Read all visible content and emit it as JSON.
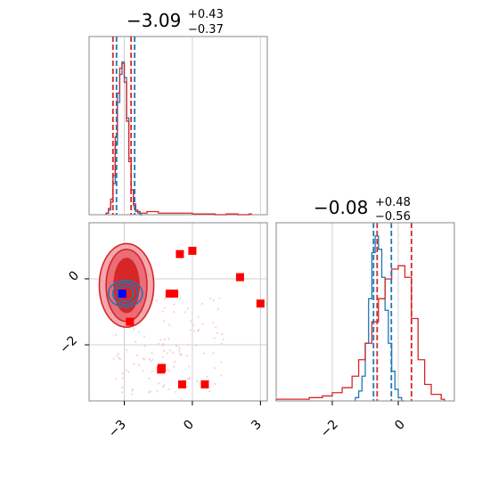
{
  "chart_data": [
    {
      "type": "histogram",
      "panel": "marginal-param-1",
      "title": {
        "median": "−3.09",
        "plus": "+0.43",
        "minus": "−0.37"
      },
      "xlim": [
        -4.55,
        3.3
      ],
      "grid": true,
      "series": [
        {
          "name": "",
          "color": "#1f77b4",
          "bins": [
            -3.8,
            -3.7,
            -3.6,
            -3.5,
            -3.4,
            -3.3,
            -3.2,
            -3.1,
            -3.0,
            -2.9,
            -2.8,
            -2.7,
            -2.6,
            -2.5,
            -2.4,
            -2.3
          ],
          "counts": [
            0.01,
            0.03,
            0.08,
            0.2,
            0.45,
            0.72,
            0.9,
            0.98,
            0.88,
            0.62,
            0.36,
            0.16,
            0.06,
            0.02,
            0.01,
            0.0
          ],
          "quantiles": [
            -3.46,
            -2.66
          ]
        },
        {
          "name": "",
          "color": "#d62728",
          "bins": [
            -3.8,
            -3.7,
            -3.6,
            -3.5,
            -3.4,
            -3.3,
            -3.2,
            -3.1,
            -3.0,
            -2.9,
            -2.8,
            -2.7,
            -2.6,
            -2.5,
            -2.4,
            -2.3,
            -2.0,
            -1.5,
            -1.0,
            -0.5,
            0.0,
            0.5,
            1.0,
            1.5,
            2.0,
            2.5
          ],
          "counts": [
            0.01,
            0.04,
            0.1,
            0.25,
            0.5,
            0.78,
            0.94,
            0.97,
            0.85,
            0.6,
            0.34,
            0.16,
            0.07,
            0.03,
            0.02,
            0.01,
            0.02,
            0.01,
            0.01,
            0.01,
            0.005,
            0.005,
            0.0,
            0.005,
            0.0,
            0.005
          ],
          "quantiles": [
            -3.46,
            -2.66
          ]
        }
      ]
    },
    {
      "type": "histogram",
      "panel": "marginal-param-2",
      "title": {
        "median": "−0.08",
        "plus": "+0.48",
        "minus": "−0.56"
      },
      "xlim": [
        -3.7,
        1.7
      ],
      "xticks": [
        "−2",
        "0"
      ],
      "grid": true,
      "series": [
        {
          "name": "",
          "color": "#1f77b4",
          "bins": [
            -1.3,
            -1.2,
            -1.1,
            -1.0,
            -0.9,
            -0.8,
            -0.7,
            -0.6,
            -0.5,
            -0.4,
            -0.3,
            -0.2,
            -0.1,
            0.0,
            0.1
          ],
          "counts": [
            0.02,
            0.06,
            0.15,
            0.35,
            0.62,
            0.9,
            1.0,
            0.92,
            0.75,
            0.55,
            0.35,
            0.18,
            0.07,
            0.02,
            0.0
          ],
          "quantiles": [
            -0.75,
            -0.21
          ]
        },
        {
          "name": "",
          "color": "#d62728",
          "bins": [
            -3.7,
            -3.2,
            -2.7,
            -2.3,
            -2.0,
            -1.7,
            -1.4,
            -1.2,
            -1.0,
            -0.8,
            -0.6,
            -0.4,
            -0.2,
            0.0,
            0.2,
            0.4,
            0.6,
            0.8,
            1.0,
            1.3
          ],
          "counts": [
            0.01,
            0.01,
            0.02,
            0.03,
            0.05,
            0.08,
            0.15,
            0.25,
            0.35,
            0.48,
            0.62,
            0.74,
            0.8,
            0.82,
            0.75,
            0.5,
            0.25,
            0.1,
            0.04,
            0.01
          ],
          "quantiles": [
            -0.64,
            0.4
          ]
        }
      ]
    },
    {
      "type": "scatter",
      "panel": "joint-param-1-vs-param-2",
      "xlim": [
        -4.55,
        3.3
      ],
      "ylim": [
        -3.7,
        1.7
      ],
      "xticks": [
        "−3",
        "0",
        "3"
      ],
      "yticks": [
        "0",
        "−2"
      ],
      "grid": true,
      "contours": [
        {
          "color": "#d62728",
          "center": [
            -2.9,
            -0.2
          ],
          "radii": [
            [
              0.55,
              1.2
            ],
            [
              0.9,
              1.75
            ],
            [
              1.2,
              2.1
            ]
          ]
        },
        {
          "color": "#1f77b4",
          "center": [
            -2.95,
            -0.45
          ],
          "radii": [
            [
              0.35,
              0.35
            ],
            [
              0.55,
              0.55
            ],
            [
              0.75,
              0.7
            ]
          ]
        }
      ],
      "marker_blue": {
        "x": -3.09,
        "y": -0.45,
        "color": "#0000ff"
      },
      "markers_red": {
        "color": "#ff0000",
        "x": [
          -0.55,
          0.0,
          -0.8,
          2.1,
          3.0,
          -1.0,
          -2.75,
          -1.35,
          -1.38,
          -0.45,
          0.55
        ],
        "y": [
          0.75,
          0.85,
          -0.45,
          0.05,
          -0.75,
          -0.45,
          -1.3,
          -2.7,
          -2.75,
          -3.2,
          -3.2
        ]
      },
      "faint_points_color": "#f4c6cc"
    }
  ]
}
